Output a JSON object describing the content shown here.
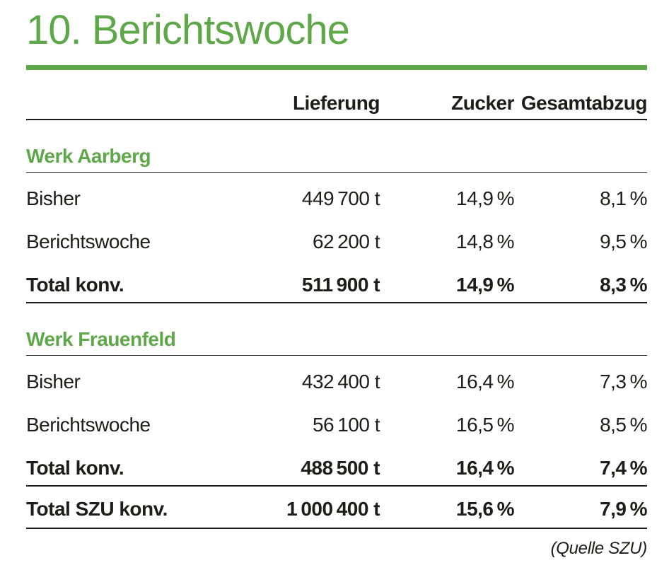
{
  "page": {
    "title": "10. Berichtswoche",
    "source_note": "(Quelle SZU)"
  },
  "colors": {
    "accent_green": "#5fa84a",
    "text_black": "#1d1d1b"
  },
  "table": {
    "columns": [
      "Lieferung",
      "Zucker",
      "Gesamtabzug"
    ],
    "sections": [
      {
        "heading": "Werk Aarberg",
        "rows": [
          {
            "label": "Bisher",
            "lieferung": "449 700 t",
            "zucker": "14,9 %",
            "gesamtabzug": "8,1 %"
          },
          {
            "label": "Berichtswoche",
            "lieferung": "62 200 t",
            "zucker": "14,8 %",
            "gesamtabzug": "9,5 %"
          },
          {
            "label": "Total konv.",
            "lieferung": "511 900 t",
            "zucker": "14,9 %",
            "gesamtabzug": "8,3 %"
          }
        ]
      },
      {
        "heading": "Werk Frauenfeld",
        "rows": [
          {
            "label": "Bisher",
            "lieferung": "432 400 t",
            "zucker": "16,4 %",
            "gesamtabzug": "7,3 %"
          },
          {
            "label": "Berichtswoche",
            "lieferung": "56 100 t",
            "zucker": "16,5 %",
            "gesamtabzug": "8,5 %"
          },
          {
            "label": "Total konv.",
            "lieferung": "488 500 t",
            "zucker": "16,4 %",
            "gesamtabzug": "7,4 %"
          }
        ]
      }
    ],
    "total": {
      "label": "Total SZU konv.",
      "lieferung": "1 000 400 t",
      "zucker": "15,6 %",
      "gesamtabzug": "7,9 %"
    }
  }
}
